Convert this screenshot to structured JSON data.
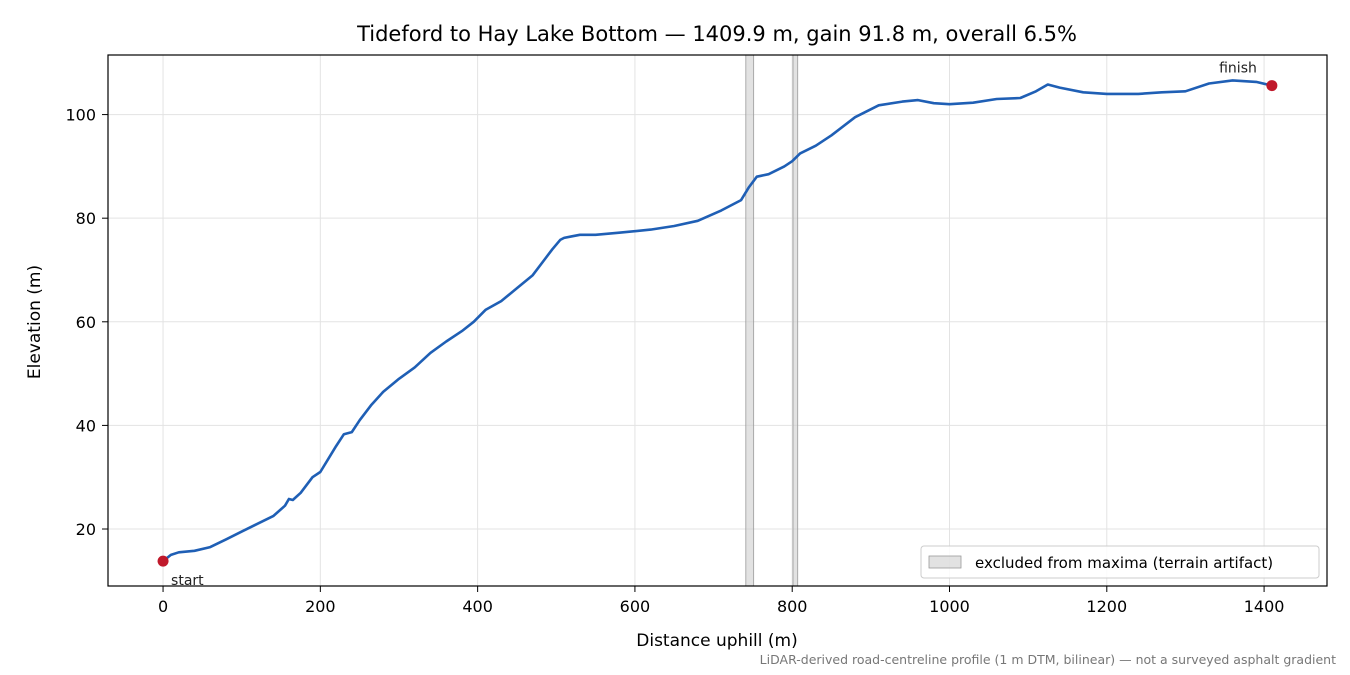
{
  "chart_data": {
    "type": "line",
    "title": "Tideford to Hay Lake Bottom — 1409.9 m, gain 91.8 m, overall 6.5%",
    "xlabel": "Distance uphill (m)",
    "ylabel": "Elevation (m)",
    "xlim": [
      -70,
      1480
    ],
    "ylim": [
      9,
      111.5
    ],
    "xticks": [
      0,
      200,
      400,
      600,
      800,
      1000,
      1200,
      1400
    ],
    "yticks": [
      20,
      40,
      60,
      80,
      100
    ],
    "grid": true,
    "legend_position": "bottom-right",
    "series": [
      {
        "color": "#1f5fb5",
        "points": [
          [
            0,
            13.8
          ],
          [
            10,
            15.0
          ],
          [
            20,
            15.5
          ],
          [
            40,
            15.8
          ],
          [
            60,
            16.5
          ],
          [
            80,
            18.0
          ],
          [
            100,
            19.5
          ],
          [
            120,
            21.0
          ],
          [
            140,
            22.5
          ],
          [
            155,
            24.5
          ],
          [
            160,
            25.8
          ],
          [
            165,
            25.6
          ],
          [
            175,
            27.0
          ],
          [
            190,
            30.0
          ],
          [
            200,
            31.0
          ],
          [
            210,
            33.5
          ],
          [
            220,
            36.0
          ],
          [
            230,
            38.3
          ],
          [
            240,
            38.7
          ],
          [
            250,
            41.0
          ],
          [
            265,
            44.0
          ],
          [
            280,
            46.5
          ],
          [
            300,
            49.0
          ],
          [
            320,
            51.2
          ],
          [
            340,
            54.0
          ],
          [
            360,
            56.2
          ],
          [
            380,
            58.2
          ],
          [
            395,
            60.0
          ],
          [
            410,
            62.3
          ],
          [
            430,
            64.0
          ],
          [
            450,
            66.5
          ],
          [
            470,
            69.0
          ],
          [
            485,
            72.0
          ],
          [
            495,
            74.0
          ],
          [
            505,
            75.8
          ],
          [
            510,
            76.2
          ],
          [
            520,
            76.5
          ],
          [
            530,
            76.8
          ],
          [
            550,
            76.8
          ],
          [
            580,
            77.2
          ],
          [
            620,
            77.8
          ],
          [
            650,
            78.5
          ],
          [
            680,
            79.5
          ],
          [
            710,
            81.5
          ],
          [
            735,
            83.5
          ],
          [
            745,
            86.0
          ],
          [
            755,
            88.0
          ],
          [
            770,
            88.5
          ],
          [
            790,
            90.0
          ],
          [
            800,
            91.0
          ],
          [
            810,
            92.5
          ],
          [
            830,
            94.0
          ],
          [
            850,
            96.0
          ],
          [
            880,
            99.5
          ],
          [
            910,
            101.8
          ],
          [
            940,
            102.5
          ],
          [
            960,
            102.8
          ],
          [
            980,
            102.2
          ],
          [
            1000,
            102.0
          ],
          [
            1030,
            102.3
          ],
          [
            1060,
            103.0
          ],
          [
            1090,
            103.2
          ],
          [
            1110,
            104.5
          ],
          [
            1125,
            105.8
          ],
          [
            1140,
            105.2
          ],
          [
            1170,
            104.3
          ],
          [
            1200,
            104.0
          ],
          [
            1240,
            104.0
          ],
          [
            1270,
            104.3
          ],
          [
            1300,
            104.5
          ],
          [
            1330,
            106.0
          ],
          [
            1360,
            106.6
          ],
          [
            1390,
            106.3
          ],
          [
            1410,
            105.6
          ]
        ]
      }
    ],
    "excluded_ranges": [
      [
        741,
        751
      ],
      [
        801,
        807
      ]
    ],
    "markers": [
      {
        "label": "start",
        "x": 0,
        "y": 13.8,
        "color": "#c0192b"
      },
      {
        "label": "finish",
        "x": 1409.9,
        "y": 105.6,
        "color": "#c0192b"
      }
    ],
    "legend": {
      "label": "excluded from maxima (terrain artifact)"
    },
    "footnote": "LiDAR-derived road-centreline profile (1 m DTM, bilinear) — not a surveyed asphalt gradient"
  }
}
